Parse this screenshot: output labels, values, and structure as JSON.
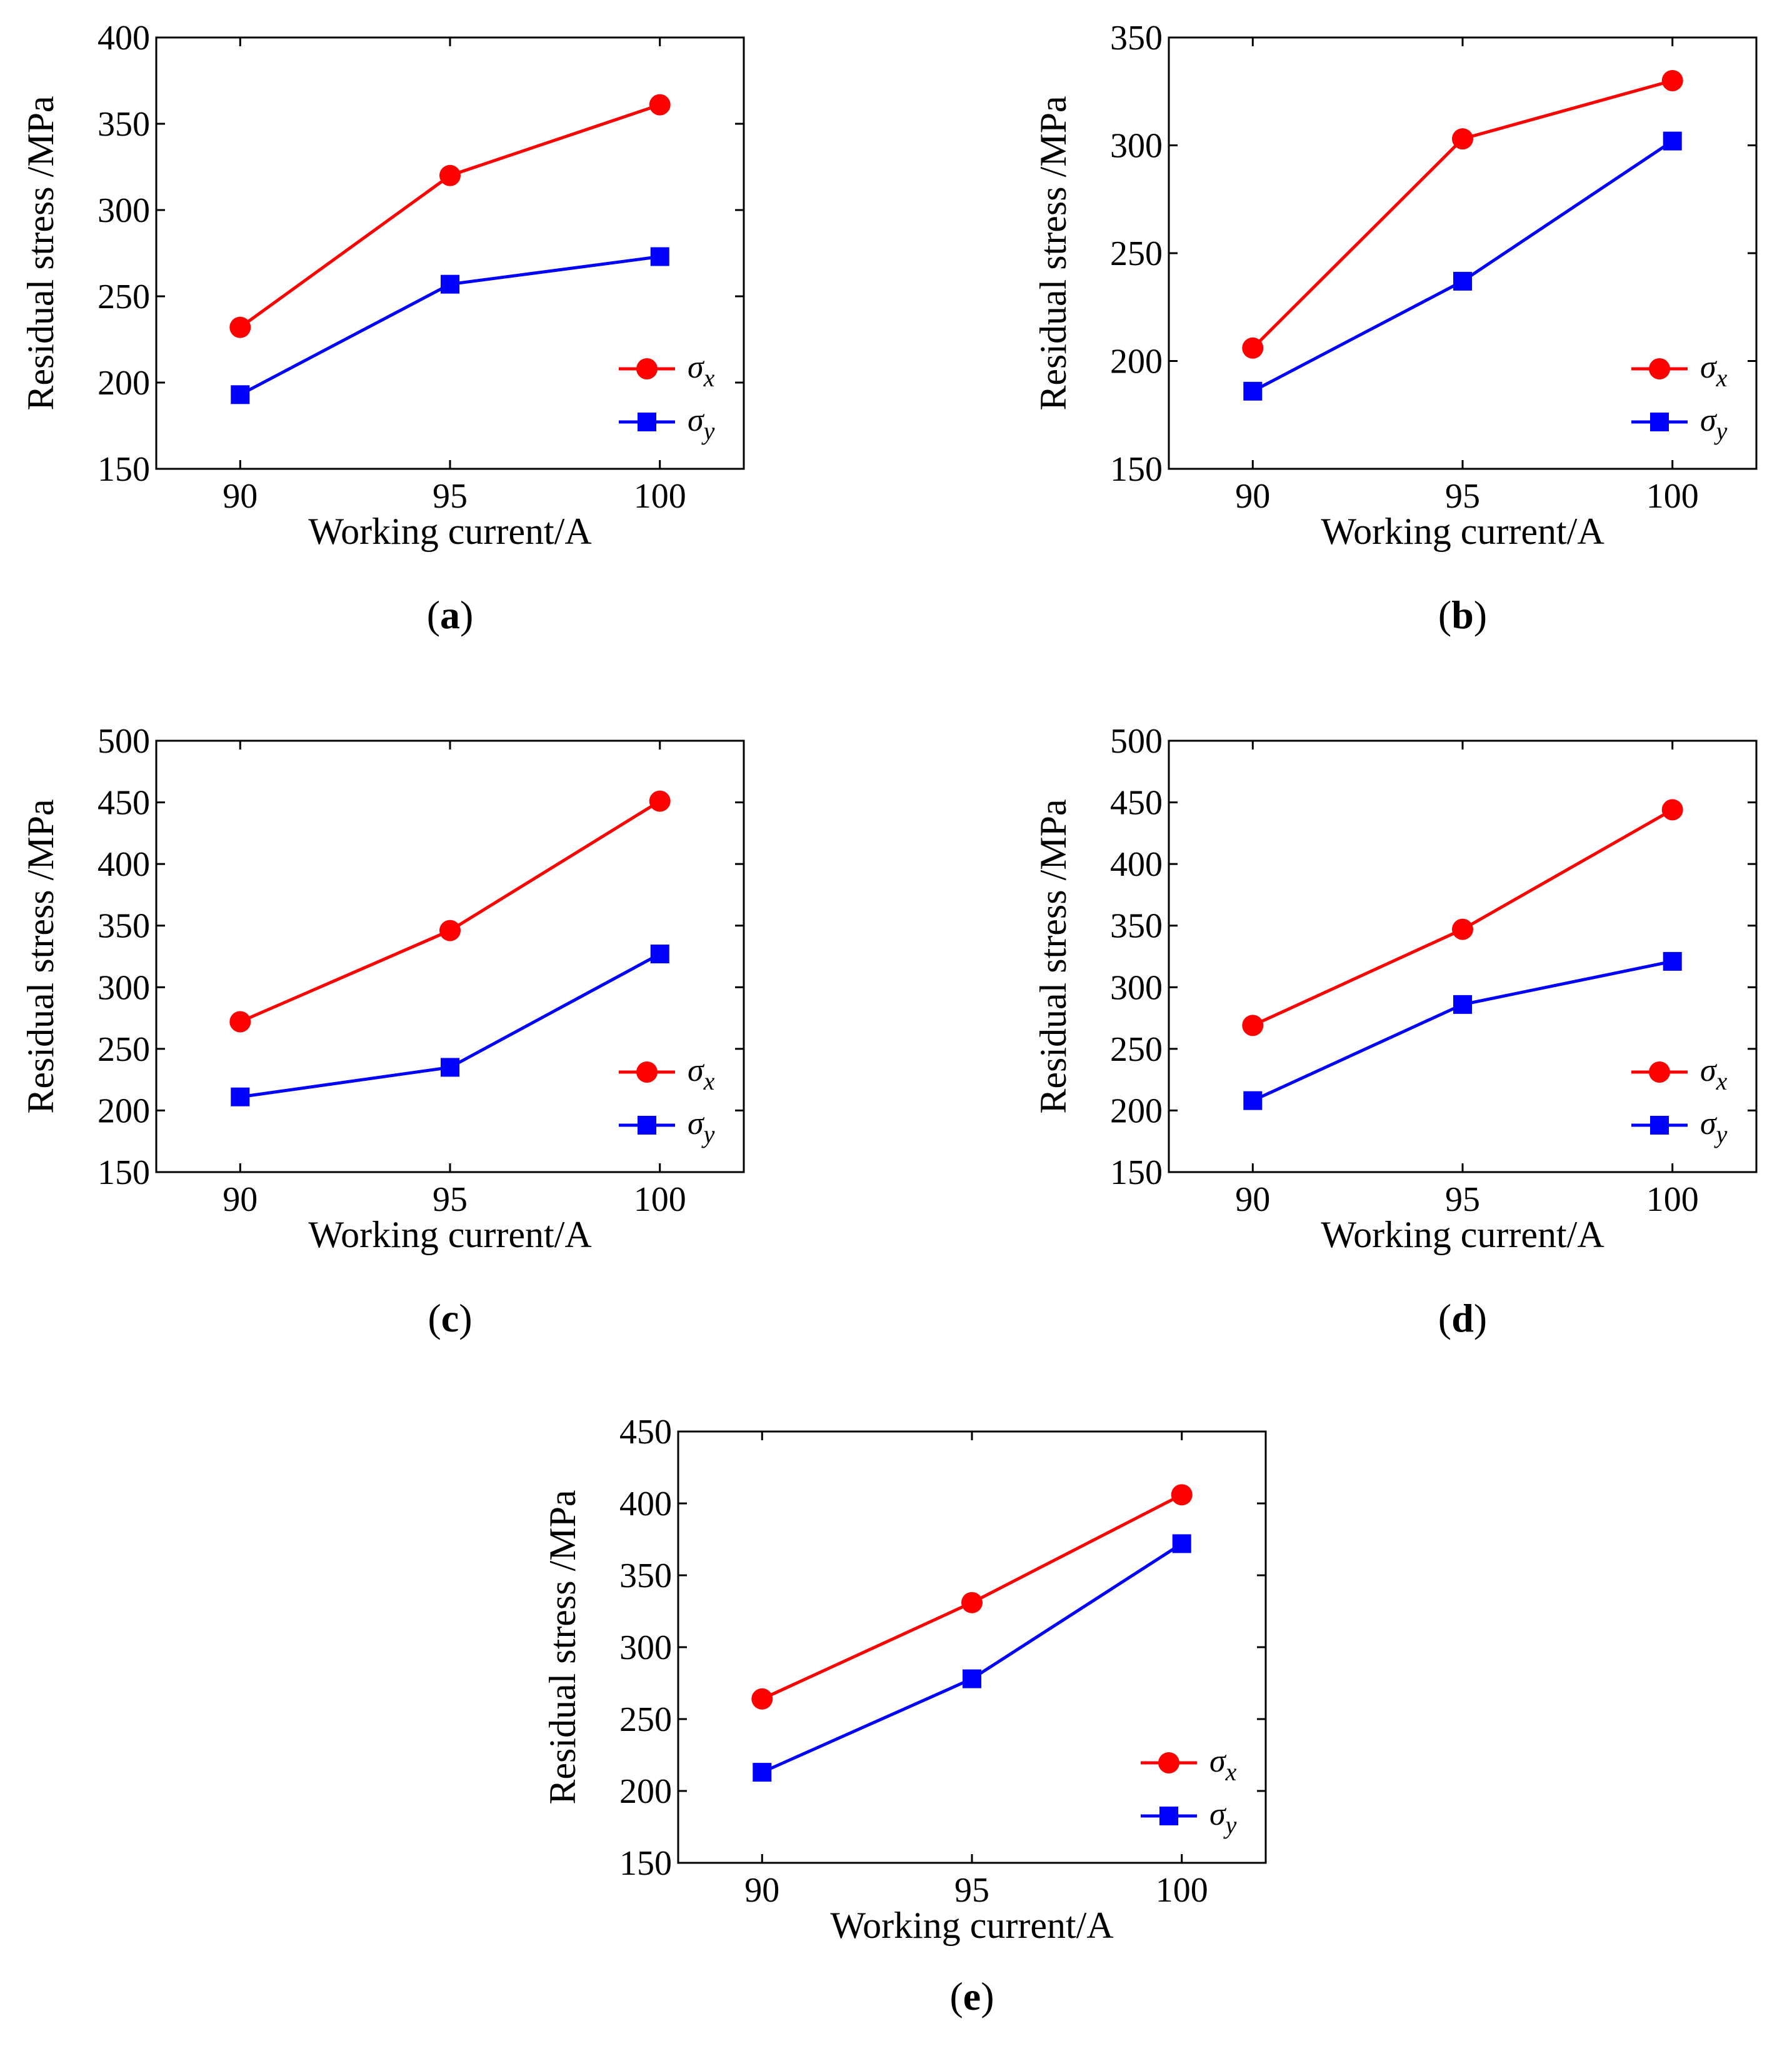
{
  "figure": {
    "caption_open": "(",
    "caption_close": ")"
  },
  "colors": {
    "sigma_x": "#ff0000",
    "sigma_y": "#0000ff",
    "axis": "#000000"
  },
  "chart_data": [
    {
      "type": "line",
      "panel": "a",
      "caption": "a",
      "title": "",
      "xlabel": "Working current/A",
      "ylabel": "Residual stress /MPa",
      "categories": [
        "90",
        "95",
        "100"
      ],
      "x": [
        90,
        95,
        100
      ],
      "xlim": [
        88,
        102
      ],
      "ylim": [
        150,
        400
      ],
      "yticks": [
        150,
        200,
        250,
        300,
        350,
        400
      ],
      "grid": false,
      "legend": "bottom-right",
      "series": [
        {
          "name": "σ",
          "sub": "x",
          "marker": "circle",
          "values": [
            232,
            320,
            361
          ]
        },
        {
          "name": "σ",
          "sub": "y",
          "marker": "square",
          "values": [
            193,
            257,
            273
          ]
        }
      ]
    },
    {
      "type": "line",
      "panel": "b",
      "caption": "b",
      "title": "",
      "xlabel": "Working current/A",
      "ylabel": "Residual stress /MPa",
      "categories": [
        "90",
        "95",
        "100"
      ],
      "x": [
        90,
        95,
        100
      ],
      "xlim": [
        88,
        102
      ],
      "ylim": [
        150,
        350
      ],
      "yticks": [
        150,
        200,
        250,
        300,
        350
      ],
      "grid": false,
      "legend": "bottom-right",
      "series": [
        {
          "name": "σ",
          "sub": "x",
          "marker": "circle",
          "values": [
            206,
            303,
            330
          ]
        },
        {
          "name": "σ",
          "sub": "y",
          "marker": "square",
          "values": [
            186,
            237,
            302
          ]
        }
      ]
    },
    {
      "type": "line",
      "panel": "c",
      "caption": "c",
      "title": "",
      "xlabel": "Working current/A",
      "ylabel": "Residual stress /MPa",
      "categories": [
        "90",
        "95",
        "100"
      ],
      "x": [
        90,
        95,
        100
      ],
      "xlim": [
        88,
        102
      ],
      "ylim": [
        150,
        500
      ],
      "yticks": [
        150,
        200,
        250,
        300,
        350,
        400,
        450,
        500
      ],
      "grid": false,
      "legend": "bottom-right",
      "series": [
        {
          "name": "σ",
          "sub": "x",
          "marker": "circle",
          "values": [
            272,
            346,
            451
          ]
        },
        {
          "name": "σ",
          "sub": "y",
          "marker": "square",
          "values": [
            211,
            235,
            327
          ]
        }
      ]
    },
    {
      "type": "line",
      "panel": "d",
      "caption": "d",
      "title": "",
      "xlabel": "Working current/A",
      "ylabel": "Residual stress /MPa",
      "categories": [
        "90",
        "95",
        "100"
      ],
      "x": [
        90,
        95,
        100
      ],
      "xlim": [
        88,
        102
      ],
      "ylim": [
        150,
        500
      ],
      "yticks": [
        150,
        200,
        250,
        300,
        350,
        400,
        450,
        500
      ],
      "grid": false,
      "legend": "bottom-right",
      "series": [
        {
          "name": "σ",
          "sub": "x",
          "marker": "circle",
          "values": [
            269,
            347,
            444
          ]
        },
        {
          "name": "σ",
          "sub": "y",
          "marker": "square",
          "values": [
            208,
            286,
            321
          ]
        }
      ]
    },
    {
      "type": "line",
      "panel": "e",
      "caption": "e",
      "title": "",
      "xlabel": "Working current/A",
      "ylabel": "Residual stress /MPa",
      "categories": [
        "90",
        "95",
        "100"
      ],
      "x": [
        90,
        95,
        100
      ],
      "xlim": [
        88,
        102
      ],
      "ylim": [
        150,
        450
      ],
      "yticks": [
        150,
        200,
        250,
        300,
        350,
        400,
        450
      ],
      "grid": false,
      "legend": "bottom-right",
      "series": [
        {
          "name": "σ",
          "sub": "x",
          "marker": "circle",
          "values": [
            264,
            331,
            406
          ]
        },
        {
          "name": "σ",
          "sub": "y",
          "marker": "square",
          "values": [
            213,
            278,
            372
          ]
        }
      ]
    }
  ]
}
